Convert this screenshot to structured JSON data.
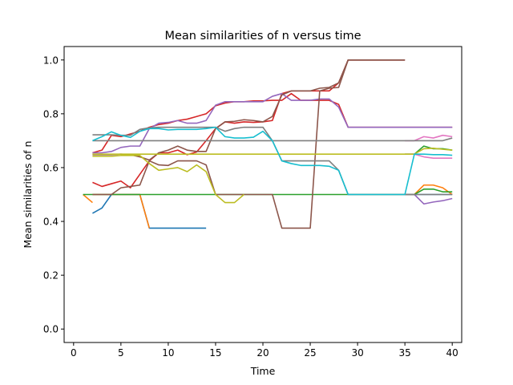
{
  "chart_data": {
    "type": "line",
    "title": "Mean similarities of n versus time",
    "xlabel": "Time",
    "ylabel": "Mean similarities of n",
    "xlim": [
      -1,
      41
    ],
    "ylim": [
      -0.05,
      1.05
    ],
    "xticks": [
      0,
      5,
      10,
      15,
      20,
      25,
      30,
      35,
      40
    ],
    "yticks": [
      0.0,
      0.2,
      0.4,
      0.6,
      0.8,
      1.0
    ],
    "xtick_labels": [
      "0",
      "5",
      "10",
      "15",
      "20",
      "25",
      "30",
      "35",
      "40"
    ],
    "ytick_labels": [
      "0.0",
      "0.2",
      "0.4",
      "0.6",
      "0.8",
      "1.0"
    ],
    "grid": false,
    "legend": false,
    "series": [
      {
        "color": "#1f77b4",
        "x": [
          2,
          3,
          4,
          5,
          6,
          7,
          8,
          9,
          10,
          11,
          12,
          13,
          14
        ],
        "y": [
          0.43,
          0.45,
          0.5,
          0.5,
          0.5,
          0.5,
          0.375,
          0.375,
          0.375,
          0.375,
          0.375,
          0.375,
          0.375
        ]
      },
      {
        "color": "#1f77b4",
        "x": [
          35,
          36,
          37,
          38,
          39,
          40
        ],
        "y": [
          0.5,
          0.5,
          0.5,
          0.5,
          0.5,
          0.5
        ]
      },
      {
        "color": "#ff7f0e",
        "x": [
          1,
          2
        ],
        "y": [
          0.5,
          0.47
        ]
      },
      {
        "color": "#ff7f0e",
        "x": [
          2,
          3,
          4,
          5,
          6,
          7,
          8
        ],
        "y": [
          0.5,
          0.5,
          0.5,
          0.5,
          0.5,
          0.5,
          0.375
        ]
      },
      {
        "color": "#ff7f0e",
        "x": [
          35,
          36,
          37,
          38,
          39,
          40
        ],
        "y": [
          0.5,
          0.5,
          0.535,
          0.535,
          0.525,
          0.5
        ]
      },
      {
        "color": "#2ca02c",
        "x": [
          1,
          2,
          3,
          4,
          5,
          6,
          7,
          8,
          9,
          10,
          11,
          12,
          13,
          14,
          15,
          16,
          17,
          18,
          19,
          20,
          21,
          22,
          23,
          24,
          25,
          26,
          27,
          28,
          29,
          30,
          31,
          32,
          33,
          34,
          35,
          36,
          37,
          38,
          39,
          40
        ],
        "y": [
          0.5,
          0.5,
          0.5,
          0.5,
          0.5,
          0.5,
          0.5,
          0.5,
          0.5,
          0.5,
          0.5,
          0.5,
          0.5,
          0.5,
          0.5,
          0.5,
          0.5,
          0.5,
          0.5,
          0.5,
          0.5,
          0.5,
          0.5,
          0.5,
          0.5,
          0.5,
          0.5,
          0.5,
          0.5,
          0.5,
          0.5,
          0.5,
          0.5,
          0.5,
          0.5,
          0.5,
          0.52,
          0.52,
          0.51,
          0.51
        ]
      },
      {
        "color": "#2ca02c",
        "x": [
          35,
          36,
          37,
          38,
          39,
          40
        ],
        "y": [
          0.65,
          0.65,
          0.68,
          0.67,
          0.67,
          0.665
        ]
      },
      {
        "color": "#d62728",
        "x": [
          2,
          3,
          4,
          5,
          6,
          7,
          8,
          9,
          10,
          11,
          12,
          13,
          14,
          15,
          16,
          17,
          18,
          19,
          20,
          21,
          22,
          23,
          24,
          25,
          26,
          27,
          28,
          29,
          30,
          31,
          32,
          33,
          34,
          35
        ],
        "y": [
          0.545,
          0.53,
          0.54,
          0.55,
          0.525,
          0.575,
          0.625,
          0.655,
          0.655,
          0.665,
          0.648,
          0.658,
          0.7,
          0.745,
          0.77,
          0.765,
          0.77,
          0.768,
          0.77,
          0.775,
          0.875,
          0.885,
          0.885,
          0.885,
          0.885,
          0.885,
          0.915,
          1.0,
          1.0,
          1.0,
          1.0,
          1.0,
          1.0,
          1.0
        ]
      },
      {
        "color": "#d62728",
        "x": [
          2,
          3,
          4,
          5,
          6,
          7,
          8,
          9,
          10,
          11,
          12,
          13,
          14,
          15,
          16,
          17,
          18,
          19,
          20,
          21,
          22,
          23,
          24,
          25,
          26,
          27,
          28,
          29,
          30,
          31,
          32,
          33,
          34,
          35,
          36,
          37,
          38,
          39,
          40
        ],
        "y": [
          0.655,
          0.665,
          0.72,
          0.715,
          0.725,
          0.735,
          0.75,
          0.76,
          0.765,
          0.775,
          0.78,
          0.79,
          0.8,
          0.83,
          0.84,
          0.845,
          0.845,
          0.848,
          0.848,
          0.85,
          0.85,
          0.875,
          0.85,
          0.85,
          0.85,
          0.85,
          0.835,
          0.75,
          0.75,
          0.75,
          0.75,
          0.75,
          0.75,
          0.75,
          0.75,
          0.75,
          0.75,
          0.75,
          0.75
        ]
      },
      {
        "color": "#9467bd",
        "x": [
          2,
          3,
          4,
          5,
          6,
          7,
          8,
          9,
          10,
          11,
          12,
          13,
          14,
          15,
          16,
          17,
          18,
          19,
          20,
          21,
          22,
          23,
          24,
          25,
          26,
          27,
          28,
          29,
          30,
          31,
          32,
          33,
          34,
          35,
          36,
          37,
          38,
          39,
          40
        ],
        "y": [
          0.655,
          0.655,
          0.66,
          0.675,
          0.68,
          0.68,
          0.745,
          0.765,
          0.768,
          0.775,
          0.765,
          0.765,
          0.775,
          0.832,
          0.845,
          0.845,
          0.845,
          0.845,
          0.845,
          0.865,
          0.875,
          0.85,
          0.85,
          0.85,
          0.855,
          0.855,
          0.825,
          0.75,
          0.75,
          0.75,
          0.75,
          0.75,
          0.75,
          0.75,
          0.75,
          0.75,
          0.75,
          0.75,
          0.75
        ]
      },
      {
        "color": "#9467bd",
        "x": [
          35,
          36,
          37,
          38,
          39,
          40
        ],
        "y": [
          0.5,
          0.5,
          0.465,
          0.472,
          0.477,
          0.485
        ]
      },
      {
        "color": "#8c564b",
        "x": [
          2,
          3,
          4,
          5,
          6,
          7,
          8,
          9,
          10,
          11,
          12,
          13,
          14,
          15,
          16,
          17,
          18,
          19,
          20,
          21,
          22,
          23,
          24,
          25,
          26,
          27,
          28,
          29,
          30,
          31,
          32,
          33,
          34,
          35
        ],
        "y": [
          0.5,
          0.5,
          0.5,
          0.525,
          0.53,
          0.535,
          0.625,
          0.61,
          0.608,
          0.625,
          0.625,
          0.625,
          0.61,
          0.5,
          0.5,
          0.5,
          0.5,
          0.5,
          0.5,
          0.5,
          0.375,
          0.375,
          0.375,
          0.375,
          0.885,
          0.895,
          0.898,
          1.0,
          1.0,
          1.0,
          1.0,
          1.0,
          1.0,
          1.0
        ]
      },
      {
        "color": "#8c564b",
        "x": [
          2,
          3,
          4,
          5,
          6,
          7,
          8,
          9,
          10,
          11,
          12,
          13,
          14,
          15,
          16,
          17,
          18,
          19,
          20,
          21,
          22,
          23,
          24,
          25,
          26,
          27,
          28,
          29,
          30,
          31,
          32,
          33,
          34,
          35
        ],
        "y": [
          0.648,
          0.648,
          0.648,
          0.65,
          0.648,
          0.64,
          0.628,
          0.655,
          0.665,
          0.68,
          0.665,
          0.66,
          0.66,
          0.745,
          0.77,
          0.772,
          0.778,
          0.775,
          0.77,
          0.79,
          0.87,
          0.885,
          0.885,
          0.885,
          0.895,
          0.898,
          0.915,
          1.0,
          1.0,
          1.0,
          1.0,
          1.0,
          1.0,
          1.0
        ]
      },
      {
        "color": "#e377c2",
        "x": [
          35,
          36,
          37,
          38,
          39,
          40
        ],
        "y": [
          0.7,
          0.7,
          0.715,
          0.71,
          0.72,
          0.715
        ]
      },
      {
        "color": "#e377c2",
        "x": [
          35,
          36,
          37,
          38,
          39,
          40
        ],
        "y": [
          0.65,
          0.65,
          0.64,
          0.635,
          0.635,
          0.635
        ]
      },
      {
        "color": "#7f7f7f",
        "x": [
          2,
          3,
          4,
          5,
          6,
          7,
          8,
          9,
          10,
          11,
          12,
          13,
          14,
          15,
          16,
          17,
          18,
          19,
          20,
          21,
          22,
          23,
          24,
          25,
          26,
          27,
          28,
          29,
          30,
          31,
          32,
          33,
          34,
          35,
          36,
          37,
          38,
          39,
          40
        ],
        "y": [
          0.722,
          0.722,
          0.722,
          0.72,
          0.72,
          0.742,
          0.748,
          0.75,
          0.75,
          0.75,
          0.75,
          0.75,
          0.75,
          0.75,
          0.735,
          0.745,
          0.75,
          0.75,
          0.75,
          0.7,
          0.625,
          0.625,
          0.625,
          0.625,
          0.625,
          0.625,
          0.59,
          0.5,
          0.5,
          0.5,
          0.5,
          0.5,
          0.5,
          0.5,
          0.5,
          0.5,
          0.5,
          0.5,
          0.5
        ]
      },
      {
        "color": "#7f7f7f",
        "x": [
          2,
          3,
          4,
          5,
          6,
          7,
          8,
          9,
          10,
          11,
          12,
          13,
          14,
          15,
          16,
          17,
          18,
          19,
          20,
          21,
          22,
          23,
          24,
          25,
          26,
          27,
          28,
          29,
          30,
          31,
          32,
          33,
          34,
          35,
          36,
          37,
          38,
          39,
          40
        ],
        "y": [
          0.7,
          0.7,
          0.7,
          0.7,
          0.7,
          0.7,
          0.7,
          0.7,
          0.7,
          0.7,
          0.7,
          0.7,
          0.7,
          0.7,
          0.7,
          0.7,
          0.7,
          0.7,
          0.7,
          0.7,
          0.7,
          0.7,
          0.7,
          0.7,
          0.7,
          0.7,
          0.7,
          0.7,
          0.7,
          0.7,
          0.7,
          0.7,
          0.7,
          0.7,
          0.7,
          0.7,
          0.7,
          0.7,
          0.71
        ]
      },
      {
        "color": "#bcbd22",
        "x": [
          2,
          3,
          4,
          5,
          6,
          7,
          8,
          9,
          10,
          11,
          12,
          13,
          14,
          15,
          16,
          17,
          18
        ],
        "y": [
          0.642,
          0.642,
          0.642,
          0.645,
          0.645,
          0.645,
          0.615,
          0.59,
          0.595,
          0.6,
          0.585,
          0.61,
          0.585,
          0.5,
          0.47,
          0.47,
          0.5
        ]
      },
      {
        "color": "#bcbd22",
        "x": [
          2,
          3,
          4,
          5,
          6,
          7,
          8,
          9,
          10,
          11,
          12,
          13,
          14,
          15,
          16,
          17,
          18,
          19,
          20,
          21,
          22,
          23,
          24,
          25,
          26,
          27,
          28,
          29,
          30,
          31,
          32,
          33,
          34,
          35,
          36,
          37,
          38,
          39,
          40
        ],
        "y": [
          0.65,
          0.65,
          0.65,
          0.65,
          0.65,
          0.65,
          0.65,
          0.65,
          0.65,
          0.65,
          0.65,
          0.65,
          0.65,
          0.65,
          0.65,
          0.65,
          0.65,
          0.65,
          0.65,
          0.65,
          0.65,
          0.65,
          0.65,
          0.65,
          0.65,
          0.65,
          0.65,
          0.65,
          0.65,
          0.65,
          0.65,
          0.65,
          0.65,
          0.65,
          0.65,
          0.67,
          0.672,
          0.668,
          0.665
        ]
      },
      {
        "color": "#17becf",
        "x": [
          2,
          3,
          4,
          5,
          6,
          7,
          8,
          9,
          10,
          11,
          12,
          13,
          14,
          15,
          16,
          17,
          18,
          19,
          20,
          21,
          22,
          23,
          24,
          25,
          26,
          27,
          28,
          29,
          30,
          31,
          32,
          33,
          34,
          35,
          36,
          37,
          38,
          39,
          40
        ],
        "y": [
          0.7,
          0.715,
          0.733,
          0.72,
          0.712,
          0.735,
          0.745,
          0.745,
          0.74,
          0.742,
          0.742,
          0.742,
          0.745,
          0.75,
          0.715,
          0.71,
          0.71,
          0.713,
          0.735,
          0.7,
          0.625,
          0.615,
          0.608,
          0.608,
          0.608,
          0.605,
          0.59,
          0.5,
          0.5,
          0.5,
          0.5,
          0.5,
          0.5,
          0.5,
          0.65,
          0.65,
          0.648,
          0.648,
          0.646
        ]
      }
    ]
  }
}
